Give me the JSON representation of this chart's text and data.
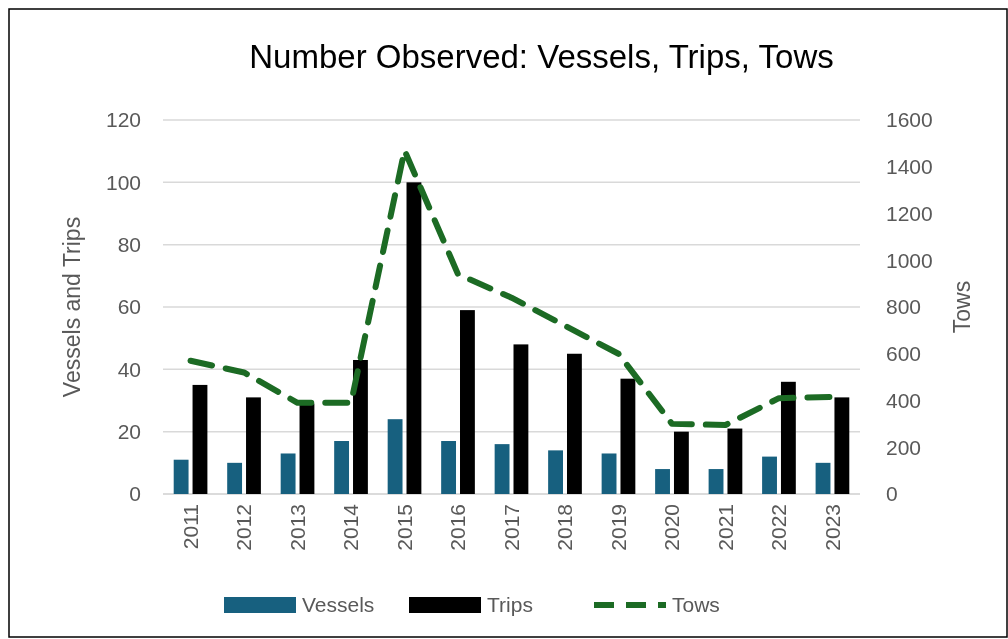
{
  "chart_data": {
    "type": "bar",
    "title": "Number Observed: Vessels, Trips, Tows",
    "categories": [
      "2011",
      "2012",
      "2013",
      "2014",
      "2015",
      "2016",
      "2017",
      "2018",
      "2019",
      "2020",
      "2021",
      "2022",
      "2023"
    ],
    "series": [
      {
        "name": "Vessels",
        "color": "#17607f",
        "values": [
          11,
          10,
          13,
          17,
          24,
          17,
          16,
          14,
          13,
          8,
          8,
          12,
          10
        ]
      },
      {
        "name": "Trips",
        "color": "#000000",
        "values": [
          35,
          31,
          29,
          43,
          100,
          59,
          48,
          45,
          37,
          20,
          21,
          36,
          31
        ]
      },
      {
        "name": "Tows",
        "type": "line",
        "axis": "y2",
        "color": "#1c6b24",
        "line_style": "dashed",
        "values": [
          570,
          520,
          390,
          390,
          1470,
          940,
          840,
          720,
          600,
          300,
          295,
          410,
          415
        ]
      }
    ],
    "ylabel": "Vessels and Trips",
    "y2label": "Tows",
    "ylim": [
      0,
      120
    ],
    "yticks": [
      0,
      20,
      40,
      60,
      80,
      100,
      120
    ],
    "y2lim": [
      0,
      1600
    ],
    "y2ticks": [
      0,
      200,
      400,
      600,
      800,
      1000,
      1200,
      1400,
      1600
    ],
    "grid": "y",
    "legend": "bottom"
  }
}
